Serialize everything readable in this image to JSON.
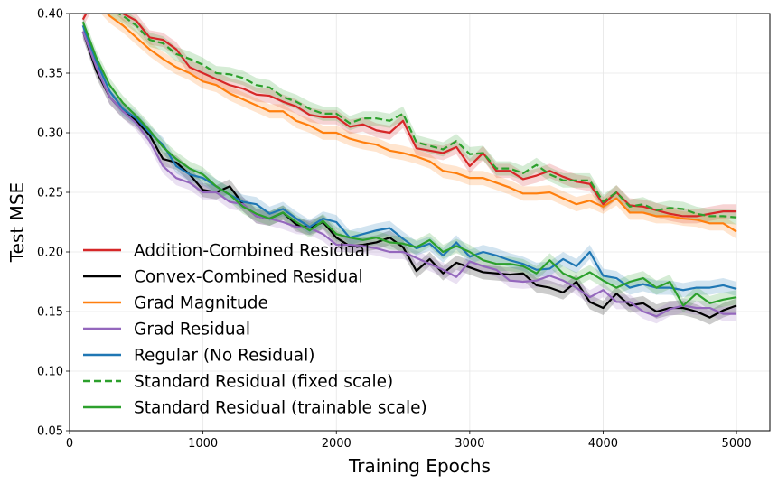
{
  "chart_data": {
    "type": "line",
    "title": "",
    "xlabel": "Training Epochs",
    "ylabel": "Test MSE",
    "xlim": [
      0,
      5250
    ],
    "ylim": [
      0.05,
      0.4
    ],
    "xticks": [
      0,
      1000,
      2000,
      3000,
      4000,
      5000
    ],
    "yticks": [
      0.05,
      0.1,
      0.15,
      0.2,
      0.25,
      0.3,
      0.35,
      0.4
    ],
    "grid": true,
    "legend_position": "lower-left",
    "x": [
      100,
      200,
      300,
      400,
      500,
      600,
      700,
      800,
      900,
      1000,
      1100,
      1200,
      1300,
      1400,
      1500,
      1600,
      1700,
      1800,
      1900,
      2000,
      2100,
      2200,
      2300,
      2400,
      2500,
      2600,
      2700,
      2800,
      2900,
      3000,
      3100,
      3200,
      3300,
      3400,
      3500,
      3600,
      3700,
      3800,
      3900,
      4000,
      4100,
      4200,
      4300,
      4400,
      4500,
      4600,
      4700,
      4800,
      4900,
      5000
    ],
    "series": [
      {
        "name": "Addition-Combined Residual",
        "color": "#d62728",
        "dash": "solid",
        "band": 0.006,
        "values": [
          0.395,
          0.415,
          0.41,
          0.4,
          0.394,
          0.38,
          0.378,
          0.37,
          0.355,
          0.35,
          0.345,
          0.34,
          0.337,
          0.332,
          0.331,
          0.326,
          0.322,
          0.315,
          0.313,
          0.313,
          0.305,
          0.307,
          0.302,
          0.3,
          0.31,
          0.287,
          0.285,
          0.283,
          0.288,
          0.272,
          0.283,
          0.268,
          0.268,
          0.261,
          0.264,
          0.268,
          0.263,
          0.259,
          0.257,
          0.24,
          0.25,
          0.239,
          0.238,
          0.235,
          0.232,
          0.23,
          0.23,
          0.232,
          0.234,
          0.234
        ]
      },
      {
        "name": "Convex-Combined Residual",
        "color": "#000000",
        "dash": "solid",
        "band": 0.006,
        "values": [
          0.385,
          0.352,
          0.33,
          0.318,
          0.31,
          0.298,
          0.278,
          0.275,
          0.265,
          0.252,
          0.25,
          0.255,
          0.24,
          0.23,
          0.228,
          0.233,
          0.223,
          0.22,
          0.225,
          0.212,
          0.205,
          0.206,
          0.208,
          0.212,
          0.204,
          0.184,
          0.194,
          0.182,
          0.191,
          0.187,
          0.183,
          0.182,
          0.181,
          0.182,
          0.172,
          0.17,
          0.166,
          0.175,
          0.158,
          0.153,
          0.165,
          0.155,
          0.157,
          0.15,
          0.153,
          0.153,
          0.15,
          0.145,
          0.151,
          0.155
        ]
      },
      {
        "name": "Grad Magnitude",
        "color": "#ff7f0e",
        "dash": "solid",
        "band": 0.006,
        "values": [
          0.415,
          0.41,
          0.398,
          0.39,
          0.38,
          0.37,
          0.362,
          0.355,
          0.35,
          0.343,
          0.34,
          0.333,
          0.328,
          0.323,
          0.318,
          0.318,
          0.31,
          0.306,
          0.3,
          0.3,
          0.295,
          0.292,
          0.29,
          0.285,
          0.283,
          0.28,
          0.276,
          0.268,
          0.266,
          0.262,
          0.262,
          0.258,
          0.254,
          0.249,
          0.249,
          0.25,
          0.245,
          0.24,
          0.243,
          0.238,
          0.245,
          0.233,
          0.233,
          0.23,
          0.23,
          0.228,
          0.227,
          0.224,
          0.224,
          0.217
        ]
      },
      {
        "name": "Grad Residual",
        "color": "#9467bd",
        "dash": "solid",
        "band": 0.006,
        "values": [
          0.385,
          0.355,
          0.33,
          0.318,
          0.308,
          0.293,
          0.272,
          0.262,
          0.258,
          0.25,
          0.25,
          0.242,
          0.24,
          0.23,
          0.228,
          0.225,
          0.221,
          0.22,
          0.215,
          0.206,
          0.206,
          0.205,
          0.203,
          0.2,
          0.2,
          0.195,
          0.19,
          0.185,
          0.179,
          0.192,
          0.188,
          0.185,
          0.176,
          0.175,
          0.176,
          0.18,
          0.176,
          0.17,
          0.162,
          0.168,
          0.158,
          0.158,
          0.15,
          0.146,
          0.152,
          0.155,
          0.153,
          0.153,
          0.148,
          0.148
        ]
      },
      {
        "name": "Regular (No Residual)",
        "color": "#1f77b4",
        "dash": "solid",
        "band": 0.006,
        "values": [
          0.39,
          0.36,
          0.335,
          0.32,
          0.312,
          0.3,
          0.29,
          0.272,
          0.265,
          0.262,
          0.255,
          0.248,
          0.242,
          0.24,
          0.232,
          0.236,
          0.228,
          0.221,
          0.228,
          0.225,
          0.212,
          0.215,
          0.218,
          0.22,
          0.211,
          0.203,
          0.207,
          0.197,
          0.208,
          0.196,
          0.2,
          0.197,
          0.193,
          0.19,
          0.185,
          0.186,
          0.194,
          0.188,
          0.2,
          0.18,
          0.178,
          0.17,
          0.173,
          0.17,
          0.17,
          0.168,
          0.17,
          0.17,
          0.172,
          0.169
        ]
      },
      {
        "name": "Standard Residual (fixed scale)",
        "color": "#2ca02c",
        "dash": "dashed",
        "band": 0.006,
        "values": [
          0.41,
          0.418,
          0.404,
          0.398,
          0.39,
          0.378,
          0.375,
          0.366,
          0.362,
          0.357,
          0.35,
          0.349,
          0.346,
          0.34,
          0.338,
          0.33,
          0.326,
          0.32,
          0.316,
          0.316,
          0.308,
          0.312,
          0.312,
          0.31,
          0.316,
          0.292,
          0.289,
          0.286,
          0.293,
          0.282,
          0.283,
          0.27,
          0.27,
          0.266,
          0.273,
          0.265,
          0.26,
          0.26,
          0.26,
          0.242,
          0.25,
          0.238,
          0.24,
          0.235,
          0.237,
          0.236,
          0.232,
          0.23,
          0.23,
          0.229
        ]
      },
      {
        "name": "Standard Residual (trainable scale)",
        "color": "#2ca02c",
        "dash": "solid",
        "band": 0.006,
        "values": [
          0.393,
          0.363,
          0.34,
          0.325,
          0.314,
          0.302,
          0.288,
          0.278,
          0.27,
          0.265,
          0.255,
          0.248,
          0.238,
          0.232,
          0.228,
          0.233,
          0.225,
          0.218,
          0.226,
          0.215,
          0.212,
          0.21,
          0.212,
          0.208,
          0.207,
          0.204,
          0.21,
          0.2,
          0.205,
          0.2,
          0.193,
          0.19,
          0.19,
          0.188,
          0.182,
          0.193,
          0.182,
          0.177,
          0.183,
          0.176,
          0.17,
          0.175,
          0.178,
          0.17,
          0.175,
          0.155,
          0.165,
          0.157,
          0.16,
          0.162
        ]
      }
    ]
  }
}
